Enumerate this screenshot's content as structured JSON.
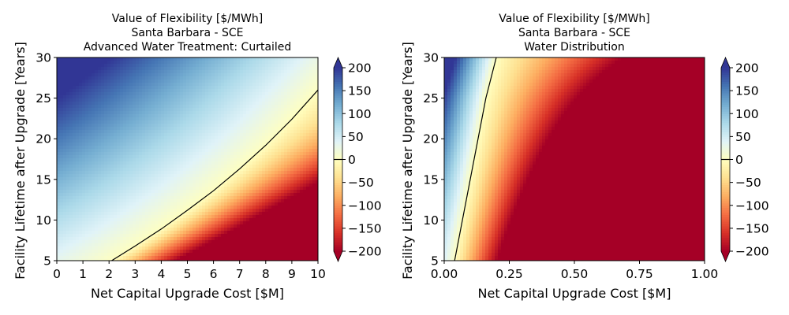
{
  "figure": {
    "colormap": "RdYlBu",
    "colormap_stops": [
      "#a50026",
      "#d73027",
      "#f46d43",
      "#fdae61",
      "#fee090",
      "#ffffbf",
      "#e0f3f8",
      "#abd9e9",
      "#74add1",
      "#4575b4",
      "#313695"
    ],
    "contour_color": "#000000"
  },
  "chart_data": [
    {
      "type": "heatmap",
      "title": [
        "Value of Flexibility [$/MWh]",
        "Santa Barbara - SCE",
        "Advanced Water Treatment: Curtailed"
      ],
      "xlabel": "Net Capital Upgrade Cost [$M]",
      "ylabel": "Facility Lifetime after Upgrade [Years]",
      "xlim": [
        0,
        10
      ],
      "ylim": [
        5,
        30
      ],
      "xticks": [
        0,
        1,
        2,
        3,
        4,
        5,
        6,
        7,
        8,
        9,
        10
      ],
      "xtick_labels": [
        "0",
        "1",
        "2",
        "3",
        "4",
        "5",
        "6",
        "7",
        "8",
        "9",
        "10"
      ],
      "yticks": [
        5,
        10,
        15,
        20,
        25,
        30
      ],
      "ytick_labels": [
        "5",
        "10",
        "15",
        "20",
        "25",
        "30"
      ],
      "color_range": [
        -200,
        200
      ],
      "colorbar_ticks": [
        200,
        150,
        100,
        50,
        0,
        -50,
        -100,
        -150,
        -200
      ],
      "colorbar_tick_labels": [
        "200",
        "150",
        "100",
        "50",
        "0",
        "−50",
        "−100",
        "−150",
        "−200"
      ],
      "colorbar_extend": "both",
      "zero_contour": [
        [
          2.1,
          5
        ],
        [
          3,
          6.8
        ],
        [
          4,
          8.9
        ],
        [
          5,
          11.2
        ],
        [
          6,
          13.6
        ],
        [
          7,
          16.3
        ],
        [
          8,
          19.2
        ],
        [
          9,
          22.4
        ],
        [
          10,
          26
        ]
      ]
    },
    {
      "type": "heatmap",
      "title": [
        "Value of Flexibility [$/MWh]",
        "Santa Barbara - SCE",
        "Water Distribution"
      ],
      "xlabel": "Net Capital Upgrade Cost [$M]",
      "ylabel": "Facility Lifetime after Upgrade [Years]",
      "xlim": [
        0,
        1
      ],
      "ylim": [
        5,
        30
      ],
      "xticks": [
        0,
        0.25,
        0.5,
        0.75,
        1
      ],
      "xtick_labels": [
        "0.00",
        "0.25",
        "0.50",
        "0.75",
        "1.00"
      ],
      "yticks": [
        5,
        10,
        15,
        20,
        25,
        30
      ],
      "ytick_labels": [
        "5",
        "10",
        "15",
        "20",
        "25",
        "30"
      ],
      "color_range": [
        -200,
        200
      ],
      "colorbar_ticks": [
        200,
        150,
        100,
        50,
        0,
        -50,
        -100,
        -150,
        -200
      ],
      "colorbar_tick_labels": [
        "200",
        "150",
        "100",
        "50",
        "0",
        "−50",
        "−100",
        "−150",
        "−200"
      ],
      "colorbar_extend": "both",
      "zero_contour": [
        [
          0.04,
          5
        ],
        [
          0.07,
          10
        ],
        [
          0.1,
          15
        ],
        [
          0.13,
          20
        ],
        [
          0.16,
          25
        ],
        [
          0.2,
          30
        ]
      ]
    }
  ]
}
